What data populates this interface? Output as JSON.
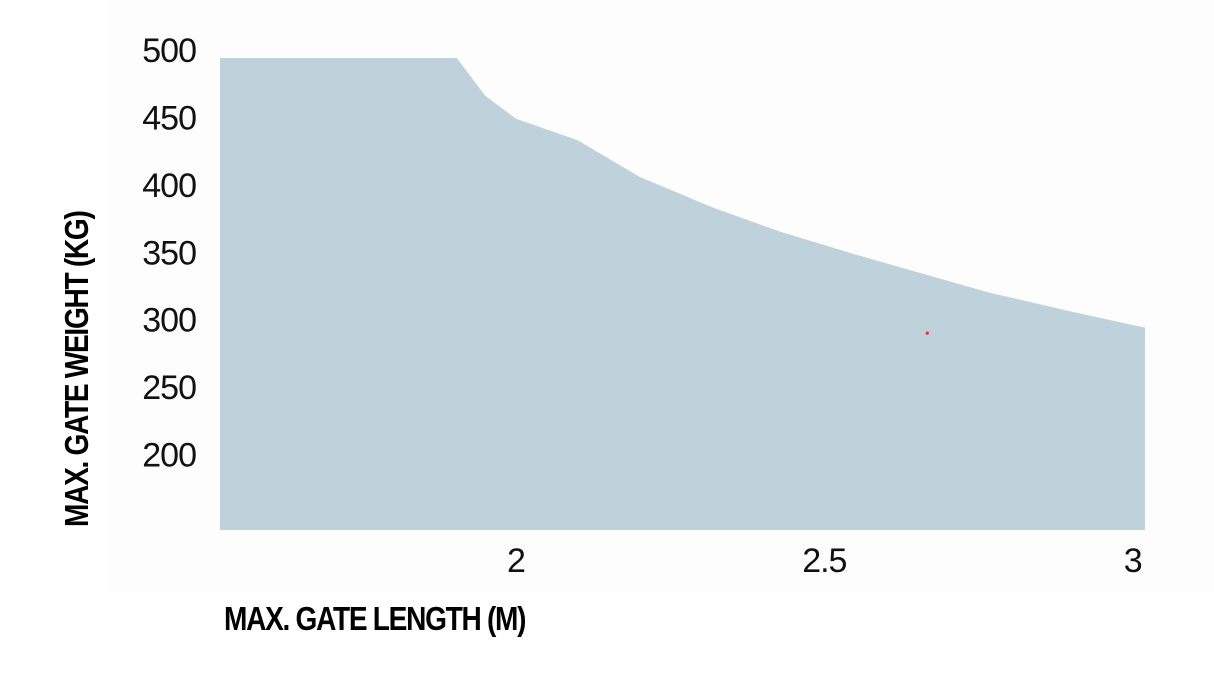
{
  "chart_data": {
    "type": "area",
    "title": "",
    "xlabel": "MAX. GATE LENGTH (M)",
    "ylabel": "MAX. GATE WEIGHT (KG)",
    "xlim": [
      1.52,
      3.02
    ],
    "ylim": [
      150,
      500
    ],
    "x_ticks": [
      2,
      2.5,
      3
    ],
    "x_tick_labels": [
      "2",
      "2.5",
      "3"
    ],
    "y_ticks": [
      500,
      450,
      400,
      350,
      300,
      250,
      200
    ],
    "y_tick_labels": [
      "500",
      "450",
      "400",
      "350",
      "300",
      "250",
      "200"
    ],
    "grid": false,
    "legend": "none",
    "series": [
      {
        "x": [
          1.52,
          1.904,
          1.95,
          2.0,
          2.1,
          2.2,
          2.32,
          2.43,
          2.545,
          2.66,
          2.768,
          2.9,
          3.02
        ],
        "y": [
          500,
          500,
          472,
          455,
          439,
          412,
          389,
          371,
          355,
          340,
          326,
          312,
          300
        ],
        "color": "#bfd1db"
      }
    ],
    "markers": [
      {
        "x": 2.667,
        "y": 296,
        "color": "#e8302a"
      }
    ]
  }
}
